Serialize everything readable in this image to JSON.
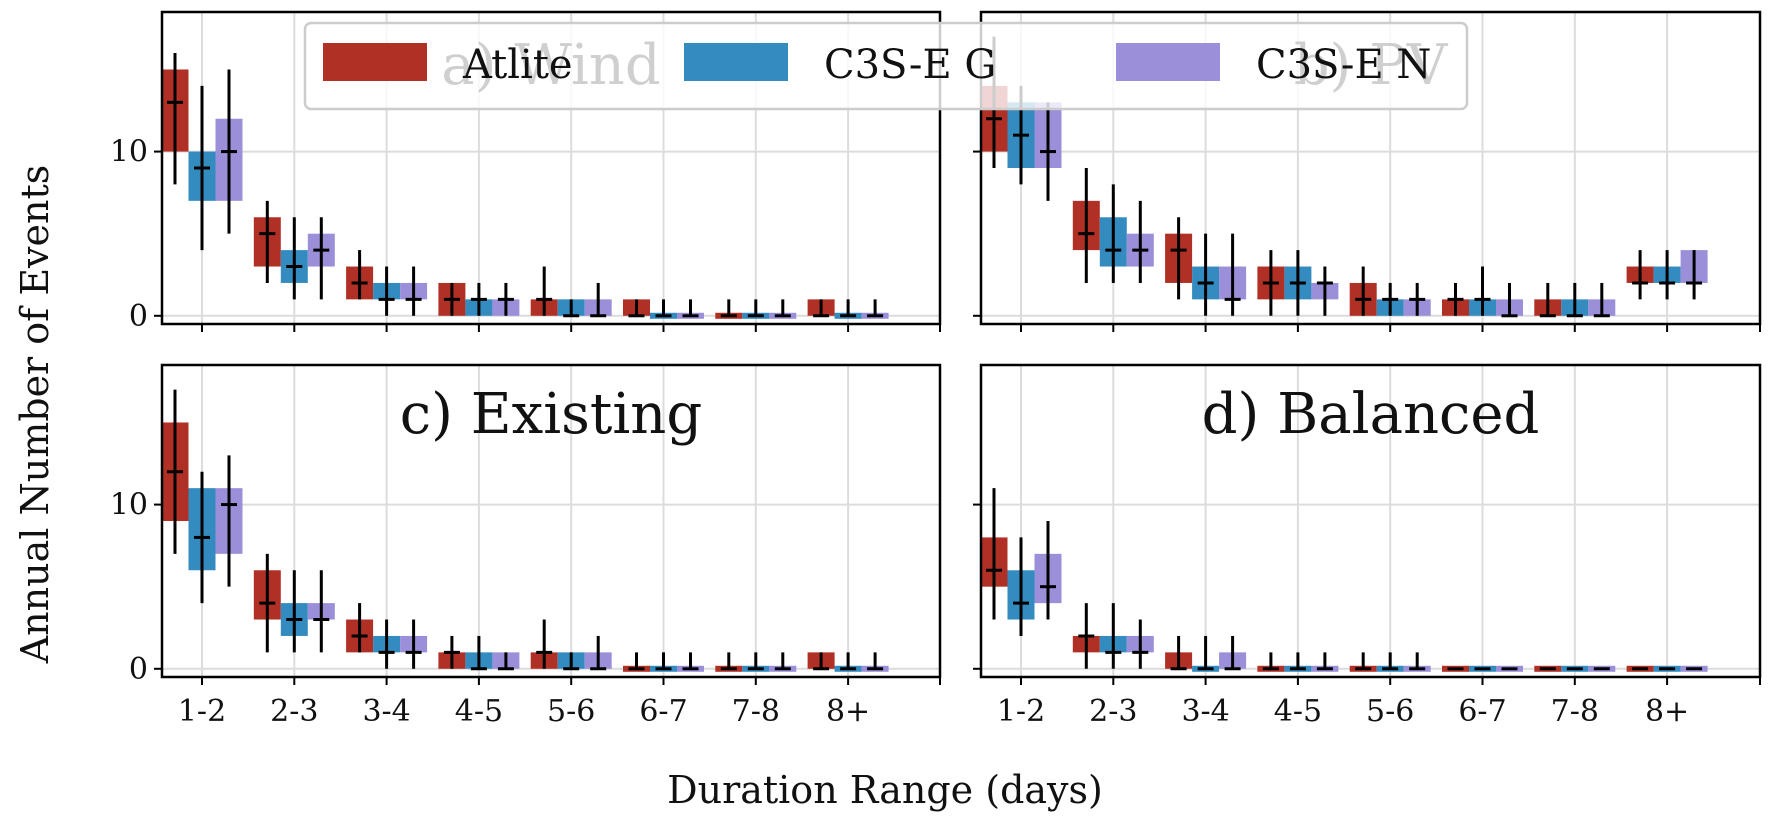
{
  "figure": {
    "ylabel": "Annual Number of Events",
    "xlabel": "Duration Range (days)",
    "legend": {
      "placement": "top-center",
      "entries": [
        {
          "name": "Atlite",
          "color": "#b03026"
        },
        {
          "name": "C3S-E G",
          "color": "#338bbf"
        },
        {
          "name": "C3S-E N",
          "color": "#9b8fd9"
        }
      ]
    }
  },
  "chart_data": [
    {
      "type": "box",
      "title": "a) Wind",
      "categories": [
        "1-2",
        "2-3",
        "3-4",
        "4-5",
        "5-6",
        "6-7",
        "7-8",
        "8+"
      ],
      "xlabel": "",
      "ylabel": "Annual Number of Events",
      "ylim": [
        -0.5,
        18.5
      ],
      "yticks": [
        0,
        10
      ],
      "grid": true,
      "series": [
        {
          "name": "Atlite",
          "q1": [
            10,
            3,
            1,
            0,
            0,
            0,
            0,
            0
          ],
          "q3": [
            15,
            6,
            3,
            2,
            1,
            1,
            0,
            1
          ],
          "median": [
            13,
            5,
            2,
            1,
            1,
            0,
            0,
            0
          ],
          "whisker_low": [
            8,
            2,
            1,
            0,
            0,
            0,
            0,
            0
          ],
          "whisker_high": [
            16,
            7,
            4,
            2,
            3,
            1,
            1,
            1
          ]
        },
        {
          "name": "C3S-E G",
          "q1": [
            7,
            2,
            1,
            0,
            0,
            0,
            0,
            0
          ],
          "q3": [
            10,
            4,
            2,
            1,
            1,
            0,
            0,
            0
          ],
          "median": [
            9,
            3,
            1,
            1,
            0,
            0,
            0,
            0
          ],
          "whisker_low": [
            4,
            1,
            0,
            0,
            0,
            0,
            0,
            0
          ],
          "whisker_high": [
            14,
            6,
            3,
            2,
            1,
            1,
            1,
            1
          ]
        },
        {
          "name": "C3S-E N",
          "q1": [
            7,
            3,
            1,
            0,
            0,
            0,
            0,
            0
          ],
          "q3": [
            12,
            5,
            2,
            1,
            1,
            0,
            0,
            0
          ],
          "median": [
            10,
            4,
            1,
            1,
            0,
            0,
            0,
            0
          ],
          "whisker_low": [
            5,
            1,
            0,
            0,
            0,
            0,
            0,
            0
          ],
          "whisker_high": [
            15,
            6,
            3,
            2,
            2,
            1,
            1,
            1
          ]
        }
      ]
    },
    {
      "type": "box",
      "title": "b) PV",
      "categories": [
        "1-2",
        "2-3",
        "3-4",
        "4-5",
        "5-6",
        "6-7",
        "7-8",
        "8+"
      ],
      "xlabel": "",
      "ylabel": "",
      "ylim": [
        -0.5,
        18.5
      ],
      "yticks": [
        0,
        10
      ],
      "grid": true,
      "series": [
        {
          "name": "Atlite",
          "q1": [
            10,
            4,
            2,
            1,
            0,
            0,
            0,
            2
          ],
          "q3": [
            14,
            7,
            5,
            3,
            2,
            1,
            1,
            3
          ],
          "median": [
            12,
            5,
            4,
            2,
            1,
            1,
            0,
            2
          ],
          "whisker_low": [
            9,
            2,
            1,
            0,
            0,
            0,
            0,
            1
          ],
          "whisker_high": [
            17,
            9,
            6,
            4,
            3,
            2,
            2,
            4
          ]
        },
        {
          "name": "C3S-E G",
          "q1": [
            9,
            3,
            1,
            1,
            0,
            0,
            0,
            2
          ],
          "q3": [
            13,
            6,
            3,
            3,
            1,
            1,
            1,
            3
          ],
          "median": [
            11,
            4,
            2,
            2,
            1,
            1,
            0,
            2
          ],
          "whisker_low": [
            8,
            2,
            0,
            0,
            0,
            0,
            0,
            1
          ],
          "whisker_high": [
            14,
            8,
            5,
            4,
            2,
            3,
            2,
            4
          ]
        },
        {
          "name": "C3S-E N",
          "q1": [
            9,
            3,
            1,
            1,
            0,
            0,
            0,
            2
          ],
          "q3": [
            13,
            5,
            3,
            2,
            1,
            1,
            1,
            4
          ],
          "median": [
            10,
            4,
            1,
            2,
            1,
            0,
            0,
            2
          ],
          "whisker_low": [
            7,
            2,
            0,
            0,
            0,
            0,
            0,
            1
          ],
          "whisker_high": [
            13,
            7,
            5,
            3,
            2,
            2,
            2,
            4
          ]
        }
      ]
    },
    {
      "type": "box",
      "title": "c) Existing",
      "categories": [
        "1-2",
        "2-3",
        "3-4",
        "4-5",
        "5-6",
        "6-7",
        "7-8",
        "8+"
      ],
      "xlabel": "Duration Range (days)",
      "ylabel": "Annual Number of Events",
      "ylim": [
        -0.5,
        18.5
      ],
      "yticks": [
        0,
        10
      ],
      "grid": true,
      "series": [
        {
          "name": "Atlite",
          "q1": [
            9,
            3,
            1,
            0,
            0,
            0,
            0,
            0
          ],
          "q3": [
            15,
            6,
            3,
            1,
            1,
            0,
            0,
            1
          ],
          "median": [
            12,
            4,
            2,
            1,
            1,
            0,
            0,
            0
          ],
          "whisker_low": [
            7,
            1,
            1,
            0,
            0,
            0,
            0,
            0
          ],
          "whisker_high": [
            17,
            7,
            4,
            2,
            3,
            1,
            1,
            1
          ]
        },
        {
          "name": "C3S-E G",
          "q1": [
            6,
            2,
            1,
            0,
            0,
            0,
            0,
            0
          ],
          "q3": [
            11,
            4,
            2,
            1,
            1,
            0,
            0,
            0
          ],
          "median": [
            8,
            3,
            1,
            0,
            0,
            0,
            0,
            0
          ],
          "whisker_low": [
            4,
            1,
            0,
            0,
            0,
            0,
            0,
            0
          ],
          "whisker_high": [
            12,
            6,
            3,
            2,
            1,
            1,
            1,
            1
          ]
        },
        {
          "name": "C3S-E N",
          "q1": [
            7,
            3,
            1,
            0,
            0,
            0,
            0,
            0
          ],
          "q3": [
            11,
            4,
            2,
            1,
            1,
            0,
            0,
            0
          ],
          "median": [
            10,
            3,
            1,
            0,
            0,
            0,
            0,
            0
          ],
          "whisker_low": [
            5,
            1,
            0,
            0,
            0,
            0,
            0,
            0
          ],
          "whisker_high": [
            13,
            6,
            3,
            1,
            2,
            1,
            1,
            1
          ]
        }
      ]
    },
    {
      "type": "box",
      "title": "d) Balanced",
      "categories": [
        "1-2",
        "2-3",
        "3-4",
        "4-5",
        "5-6",
        "6-7",
        "7-8",
        "8+"
      ],
      "xlabel": "Duration Range (days)",
      "ylabel": "",
      "ylim": [
        -0.5,
        18.5
      ],
      "yticks": [
        0,
        10
      ],
      "grid": true,
      "series": [
        {
          "name": "Atlite",
          "q1": [
            5,
            1,
            0,
            0,
            0,
            0,
            0,
            0
          ],
          "q3": [
            8,
            2,
            1,
            0,
            0,
            0,
            0,
            0
          ],
          "median": [
            6,
            2,
            0,
            0,
            0,
            0,
            0,
            0
          ],
          "whisker_low": [
            3,
            0,
            0,
            0,
            0,
            0,
            0,
            0
          ],
          "whisker_high": [
            11,
            4,
            2,
            1,
            1,
            0,
            0,
            0
          ]
        },
        {
          "name": "C3S-E G",
          "q1": [
            3,
            1,
            0,
            0,
            0,
            0,
            0,
            0
          ],
          "q3": [
            6,
            2,
            0,
            0,
            0,
            0,
            0,
            0
          ],
          "median": [
            4,
            1,
            0,
            0,
            0,
            0,
            0,
            0
          ],
          "whisker_low": [
            2,
            0,
            0,
            0,
            0,
            0,
            0,
            0
          ],
          "whisker_high": [
            8,
            4,
            2,
            1,
            1,
            0,
            0,
            0
          ]
        },
        {
          "name": "C3S-E N",
          "q1": [
            4,
            1,
            0,
            0,
            0,
            0,
            0,
            0
          ],
          "q3": [
            7,
            2,
            1,
            0,
            0,
            0,
            0,
            0
          ],
          "median": [
            5,
            1,
            0,
            0,
            0,
            0,
            0,
            0
          ],
          "whisker_low": [
            3,
            0,
            0,
            0,
            0,
            0,
            0,
            0
          ],
          "whisker_high": [
            9,
            3,
            2,
            1,
            1,
            0,
            0,
            0
          ]
        }
      ]
    }
  ]
}
